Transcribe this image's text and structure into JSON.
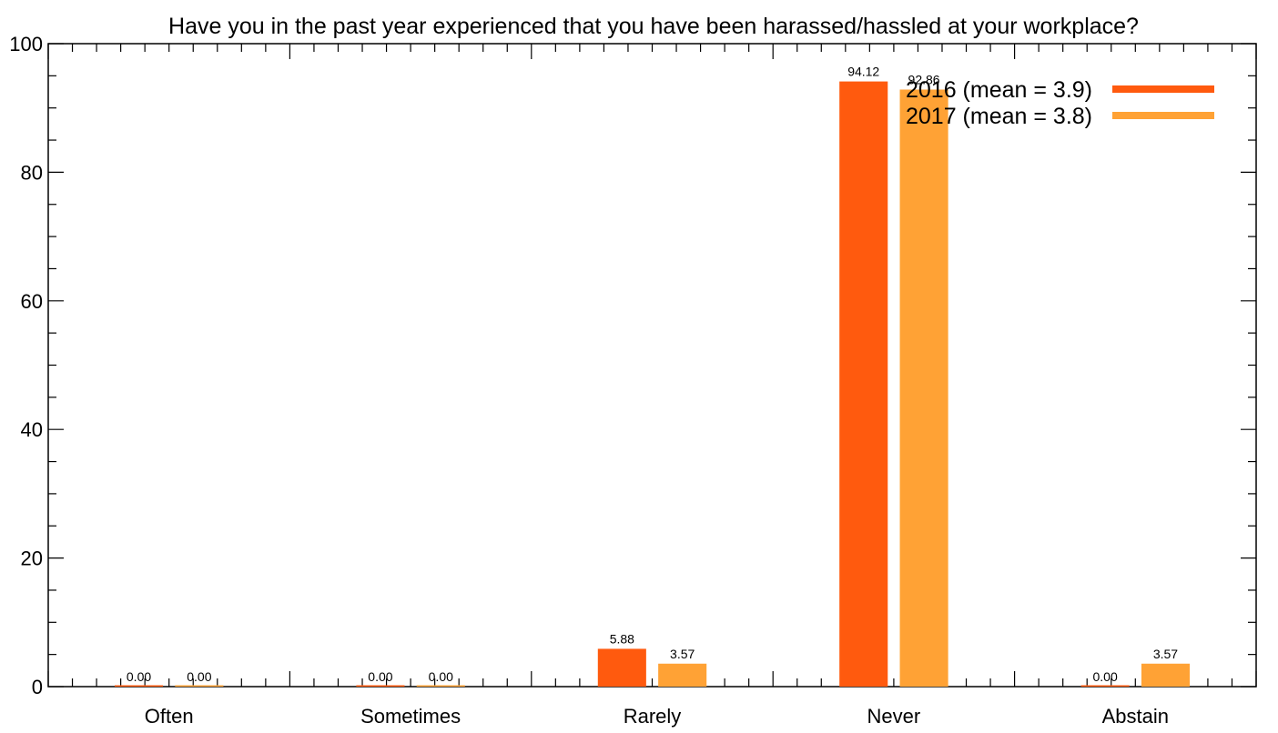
{
  "chart_data": {
    "type": "bar",
    "title": "Have you in the past year  experienced that you have been harassed/hassled at your workplace?",
    "xlabel": "",
    "ylabel": "",
    "categories": [
      "Often",
      "Sometimes",
      "Rarely",
      "Never",
      "Abstain"
    ],
    "series": [
      {
        "name": "2016 (mean = 3.9)",
        "color": "#FF5A0E",
        "values": [
          0.0,
          0.0,
          5.88,
          94.12,
          0.0
        ],
        "labels": [
          "0.00",
          "0.00",
          "5.88",
          "94.12",
          "0.00"
        ]
      },
      {
        "name": "2017 (mean = 3.8)",
        "color": "#FFA235",
        "values": [
          0.0,
          0.0,
          3.57,
          92.86,
          3.57
        ],
        "labels": [
          "0.00",
          "0.00",
          "3.57",
          "92.86",
          "3.57"
        ]
      }
    ],
    "ylim": [
      0,
      100
    ],
    "yticks": [
      "0",
      "20",
      "40",
      "60",
      "80",
      "100"
    ],
    "grid": false,
    "legend": "top-right"
  }
}
